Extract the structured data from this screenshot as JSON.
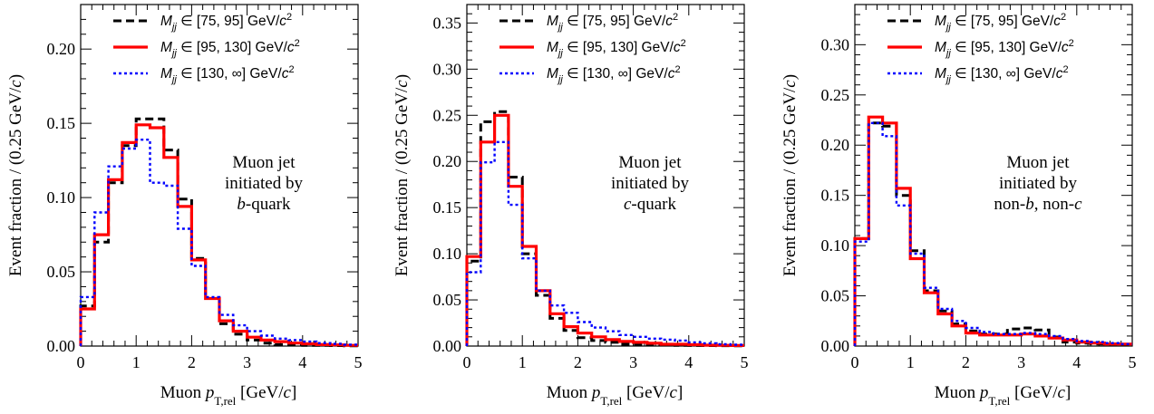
{
  "chart_data": [
    {
      "type": "line",
      "subtype": "step-histogram",
      "ylabel": "Event fraction / (0.25 GeV/c)",
      "xlabel": "Muon p_T,rel [GeV/c]",
      "xlim": [
        0,
        5
      ],
      "ylim": [
        0,
        0.23
      ],
      "yticks": [
        "0.00",
        "0.05",
        "0.10",
        "0.15",
        "0.20"
      ],
      "xticks": [
        "0",
        "1",
        "2",
        "3",
        "4",
        "5"
      ],
      "annotation": [
        "Muon jet",
        "initiated by",
        "b-quark"
      ],
      "bin_edges": [
        0,
        0.25,
        0.5,
        0.75,
        1.0,
        1.25,
        1.5,
        1.75,
        2.0,
        2.25,
        2.5,
        2.75,
        3.0,
        3.25,
        3.5,
        3.75,
        4.0,
        4.25,
        4.5,
        4.75,
        5.0
      ],
      "series": [
        {
          "name": "M_jj ∈ [75, 95] GeV/c²",
          "color": "#000000",
          "dash": "dashed",
          "values": [
            0.027,
            0.07,
            0.11,
            0.135,
            0.153,
            0.153,
            0.132,
            0.099,
            0.059,
            0.032,
            0.015,
            0.008,
            0.004,
            0.002,
            0.001,
            0.001,
            0.0005,
            0.0004,
            0.0003,
            0.0002
          ]
        },
        {
          "name": "M_jj ∈ [95, 130] GeV/c²",
          "color": "#ff0000",
          "dash": "solid",
          "values": [
            0.025,
            0.075,
            0.112,
            0.137,
            0.149,
            0.147,
            0.127,
            0.094,
            0.058,
            0.032,
            0.017,
            0.01,
            0.006,
            0.004,
            0.003,
            0.002,
            0.0015,
            0.001,
            0.0008,
            0.0005
          ]
        },
        {
          "name": "M_jj ∈ [130, ∞] GeV/c²",
          "color": "#0000ff",
          "dash": "dotted",
          "values": [
            0.033,
            0.09,
            0.121,
            0.133,
            0.139,
            0.11,
            0.108,
            0.079,
            0.054,
            0.033,
            0.021,
            0.014,
            0.01,
            0.007,
            0.005,
            0.004,
            0.003,
            0.002,
            0.0015,
            0.001
          ]
        }
      ]
    },
    {
      "type": "line",
      "subtype": "step-histogram",
      "ylabel": "Event fraction / (0.25 GeV/c)",
      "xlabel": "Muon p_T,rel [GeV/c]",
      "xlim": [
        0,
        5
      ],
      "ylim": [
        0,
        0.37
      ],
      "yticks": [
        "0.00",
        "0.05",
        "0.10",
        "0.15",
        "0.20",
        "0.25",
        "0.30",
        "0.35"
      ],
      "xticks": [
        "0",
        "1",
        "2",
        "3",
        "4",
        "5"
      ],
      "annotation": [
        "Muon jet",
        "initiated by",
        "c-quark"
      ],
      "bin_edges": [
        0,
        0.25,
        0.5,
        0.75,
        1.0,
        1.25,
        1.5,
        1.75,
        2.0,
        2.25,
        2.5,
        2.75,
        3.0,
        3.25,
        3.5,
        3.75,
        4.0,
        4.25,
        4.5,
        4.75,
        5.0
      ],
      "series": [
        {
          "name": "M_jj ∈ [75, 95] GeV/c²",
          "color": "#000000",
          "dash": "dashed",
          "values": [
            0.092,
            0.243,
            0.254,
            0.183,
            0.1,
            0.055,
            0.03,
            0.017,
            0.009,
            0.006,
            0.004,
            0.002,
            0.002,
            0.001,
            0.001,
            0.0008,
            0.0006,
            0.0005,
            0.0004,
            0.0003
          ]
        },
        {
          "name": "M_jj ∈ [95, 130] GeV/c²",
          "color": "#ff0000",
          "dash": "solid",
          "values": [
            0.097,
            0.221,
            0.25,
            0.173,
            0.108,
            0.06,
            0.035,
            0.021,
            0.014,
            0.01,
            0.007,
            0.005,
            0.004,
            0.003,
            0.002,
            0.002,
            0.0015,
            0.001,
            0.0008,
            0.0006
          ]
        },
        {
          "name": "M_jj ∈ [130, ∞] GeV/c²",
          "color": "#0000ff",
          "dash": "dotted",
          "values": [
            0.08,
            0.199,
            0.221,
            0.153,
            0.095,
            0.06,
            0.044,
            0.036,
            0.026,
            0.02,
            0.016,
            0.012,
            0.01,
            0.008,
            0.007,
            0.006,
            0.004,
            0.003,
            0.002,
            0.0015
          ]
        }
      ]
    },
    {
      "type": "line",
      "subtype": "step-histogram",
      "ylabel": "Event fraction / (0.25 GeV/c)",
      "xlabel": "Muon p_T,rel [GeV/c]",
      "xlim": [
        0,
        5
      ],
      "ylim": [
        0,
        0.34
      ],
      "yticks": [
        "0.00",
        "0.05",
        "0.10",
        "0.15",
        "0.20",
        "0.25",
        "0.30"
      ],
      "xticks": [
        "0",
        "1",
        "2",
        "3",
        "4",
        "5"
      ],
      "annotation": [
        "Muon jet",
        "initiated by",
        "non-b, non-c"
      ],
      "bin_edges": [
        0,
        0.25,
        0.5,
        0.75,
        1.0,
        1.25,
        1.5,
        1.75,
        2.0,
        2.25,
        2.5,
        2.75,
        3.0,
        3.25,
        3.5,
        3.75,
        4.0,
        4.25,
        4.5,
        4.75,
        5.0
      ],
      "series": [
        {
          "name": "M_jj ∈ [75, 95] GeV/c²",
          "color": "#000000",
          "dash": "dashed",
          "values": [
            0.107,
            0.222,
            0.219,
            0.15,
            0.095,
            0.055,
            0.035,
            0.022,
            0.015,
            0.012,
            0.012,
            0.017,
            0.018,
            0.016,
            0.009,
            0.004,
            0.003,
            0.002,
            0.002,
            0.001
          ]
        },
        {
          "name": "M_jj ∈ [95, 130] GeV/c²",
          "color": "#ff0000",
          "dash": "solid",
          "values": [
            0.107,
            0.228,
            0.222,
            0.157,
            0.087,
            0.053,
            0.032,
            0.02,
            0.013,
            0.011,
            0.011,
            0.011,
            0.012,
            0.01,
            0.008,
            0.006,
            0.004,
            0.003,
            0.002,
            0.002
          ]
        },
        {
          "name": "M_jj ∈ [130, ∞] GeV/c²",
          "color": "#0000ff",
          "dash": "dotted",
          "values": [
            0.104,
            0.222,
            0.209,
            0.14,
            0.092,
            0.058,
            0.037,
            0.025,
            0.018,
            0.014,
            0.012,
            0.012,
            0.013,
            0.012,
            0.01,
            0.007,
            0.005,
            0.004,
            0.003,
            0.002
          ]
        }
      ]
    }
  ]
}
